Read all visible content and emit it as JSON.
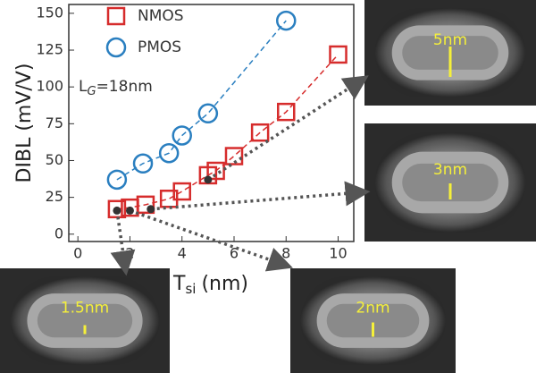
{
  "chart_data": {
    "type": "scatter",
    "xlabel": [
      "T",
      "si",
      "(nm)"
    ],
    "ylabel": "DIBL (mV/V)",
    "annotation": [
      "L",
      "G",
      "=18nm"
    ],
    "xlim": [
      -0.35,
      10.6
    ],
    "ylim": [
      -5,
      156
    ],
    "xticks": [
      0,
      2,
      4,
      6,
      8,
      10
    ],
    "yticks": [
      0,
      25,
      50,
      75,
      100,
      125,
      150
    ],
    "legend": "upper left",
    "series": [
      {
        "name": "NMOS",
        "color": "#d62c2c",
        "marker": "square",
        "x": [
          1.5,
          2,
          2.6,
          3.5,
          4,
          5,
          5.3,
          6,
          7,
          8,
          10
        ],
        "values": [
          17,
          18,
          20,
          24,
          29,
          40,
          43,
          53,
          69,
          83,
          122
        ]
      },
      {
        "name": "PMOS",
        "color": "#2a7fc0",
        "marker": "circle",
        "x": [
          1.5,
          2.5,
          3.5,
          4,
          5,
          8
        ],
        "values": [
          37,
          48,
          55,
          67,
          82,
          145
        ]
      }
    ],
    "highlights": {
      "color": "#333333",
      "x": [
        1.5,
        2,
        2.8,
        5
      ],
      "values": [
        16,
        16,
        17,
        37
      ]
    },
    "images": [
      {
        "label": "1.5nm"
      },
      {
        "label": "2nm"
      },
      {
        "label": "3nm"
      },
      {
        "label": "5nm"
      }
    ]
  }
}
